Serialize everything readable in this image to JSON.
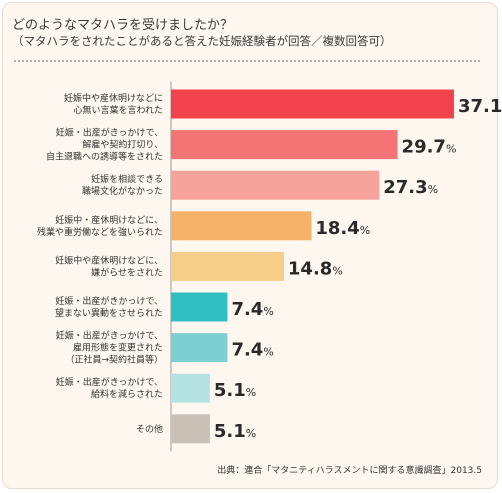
{
  "header": {
    "title": "どのようなマタハラを受けましたか？",
    "subtitle": "（マタハラをされたことがあると答えた妊娠経験者が回答／複数回答可）"
  },
  "source": "出典：連合「マタニティハラスメントに関する意識調査」2013.5",
  "chart_data": {
    "type": "bar",
    "orientation": "horizontal",
    "title": "どのようなマタハラを受けましたか？",
    "subtitle": "（マタハラをされたことがあると答えた妊娠経験者が回答／複数回答可）",
    "unit": "%",
    "categories": [
      [
        "妊娠中や産休明けなどに",
        "心無い言葉を言われた"
      ],
      [
        "妊娠・出産がきっかけで、",
        "解雇や契約打切り、",
        "自主退職への誘導等をされた"
      ],
      [
        "妊娠を相談できる",
        "職場文化がなかった"
      ],
      [
        "妊娠中・産休明けなどに、",
        "残業や重労働などを強いられた"
      ],
      [
        "妊娠中や産休明けなどに、",
        "嫌がらせをされた"
      ],
      [
        "妊娠・出産がきかっけで、",
        "望まない異動をさせられた"
      ],
      [
        "妊娠・出産がきっかけで、",
        "雇用形態を変更された",
        "（正社員→契約社員等）"
      ],
      [
        "妊娠・出産がきっかけで、",
        "給料を減らされた"
      ],
      [
        "その他"
      ]
    ],
    "values": [
      37.1,
      29.7,
      27.3,
      18.4,
      14.8,
      7.4,
      7.4,
      5.1,
      5.1
    ],
    "value_labels": [
      "37.1",
      "29.7",
      "27.3",
      "18.4",
      "14.8",
      "7.4",
      "7.4",
      "5.1",
      "5.1"
    ],
    "colors": [
      "#f2424e",
      "#f47374",
      "#f6a39b",
      "#f5b26b",
      "#f7cd8a",
      "#2fbfc3",
      "#7ecfd1",
      "#b5e2e2",
      "#c9c0b6"
    ],
    "xlim": [
      0,
      37.1
    ],
    "grid": false,
    "legend": "none"
  }
}
